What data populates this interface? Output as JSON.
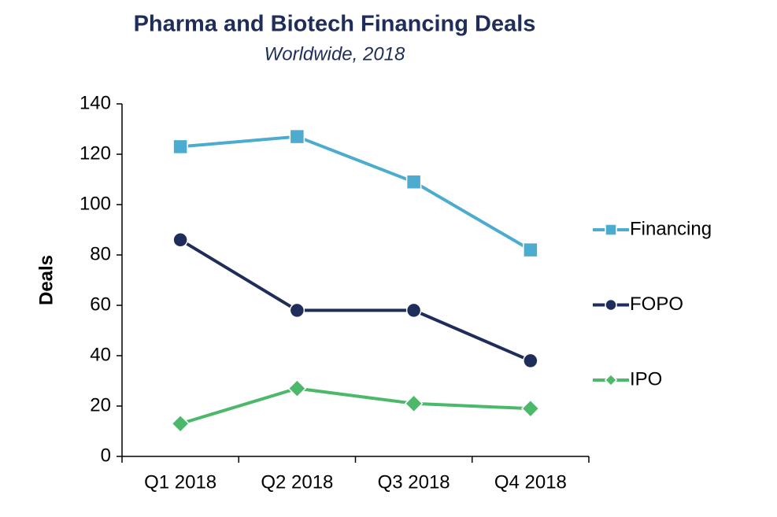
{
  "chart_data": {
    "type": "line",
    "title": "Pharma and Biotech Financing Deals",
    "subtitle": "Worldwide, 2018",
    "y_label": "Deals",
    "categories": [
      "Q1 2018",
      "Q2 2018",
      "Q3 2018",
      "Q4 2018"
    ],
    "series": [
      {
        "name": "Financing",
        "color": "#4bacd0",
        "marker": "square",
        "values": [
          123,
          127,
          109,
          82
        ]
      },
      {
        "name": "FOPO",
        "color": "#1f2d5a",
        "marker": "circle",
        "values": [
          86,
          58,
          58,
          38
        ]
      },
      {
        "name": "IPO",
        "color": "#4cb86a",
        "marker": "diamond",
        "values": [
          13,
          27,
          21,
          19
        ]
      }
    ],
    "ylim": [
      0,
      140
    ],
    "yticks": [
      0,
      20,
      40,
      60,
      80,
      100,
      120,
      140
    ],
    "grid": false,
    "legend": "right"
  }
}
